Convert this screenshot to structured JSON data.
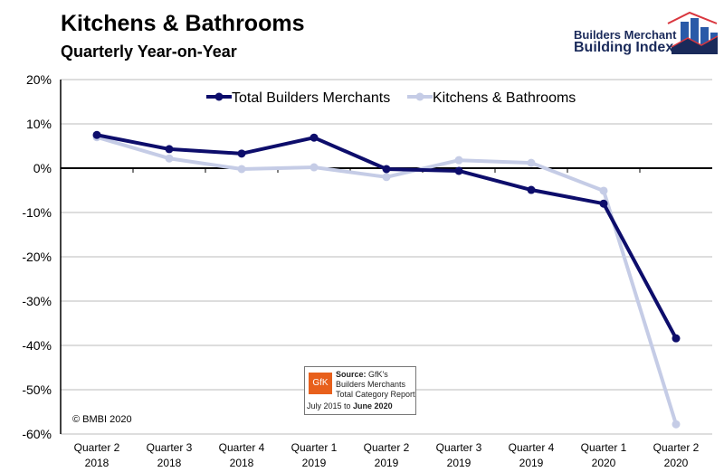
{
  "header": {
    "title": "Kitchens & Bathrooms",
    "subtitle": "Quarterly Year-on-Year"
  },
  "logo": {
    "line1": "Builders Merchant",
    "line2": "Building Index"
  },
  "source": {
    "label": "Source:",
    "line1": "GfK's",
    "line2": "Builders Merchants",
    "line3": "Total Category Report",
    "date_from": "July 2015 to ",
    "date_to": "June 2020",
    "gfk": "GfK"
  },
  "copyright": "© BMBI 2020",
  "colors": {
    "total": "#0d0d6b",
    "kb": "#c5cce6"
  },
  "chart_data": {
    "type": "line",
    "title": "Kitchens & Bathrooms",
    "subtitle": "Quarterly Year-on-Year",
    "categories": [
      [
        "Quarter 2",
        "2018"
      ],
      [
        "Quarter 3",
        "2018"
      ],
      [
        "Quarter 4",
        "2018"
      ],
      [
        "Quarter 1",
        "2019"
      ],
      [
        "Quarter 2",
        "2019"
      ],
      [
        "Quarter 3",
        "2019"
      ],
      [
        "Quarter 4",
        "2019"
      ],
      [
        "Quarter 1",
        "2020"
      ],
      [
        "Quarter 2",
        "2020"
      ]
    ],
    "series": [
      {
        "name": "Total Builders Merchants",
        "values": [
          7.5,
          4.3,
          3.3,
          6.9,
          -0.2,
          -0.6,
          -4.9,
          -8.0,
          -38.4
        ]
      },
      {
        "name": "Kitchens & Bathrooms",
        "values": [
          7.0,
          2.2,
          -0.2,
          0.2,
          -2.0,
          1.8,
          1.2,
          -5.1,
          -57.8
        ]
      }
    ],
    "ylim": [
      -60,
      20
    ],
    "yticks": [
      20,
      10,
      0,
      -10,
      -20,
      -30,
      -40,
      -50,
      -60
    ],
    "ytick_labels": [
      "20%",
      "10%",
      "0%",
      "-10%",
      "-20%",
      "-30%",
      "-40%",
      "-50%",
      "-60%"
    ],
    "grid": true,
    "legend": "top"
  }
}
